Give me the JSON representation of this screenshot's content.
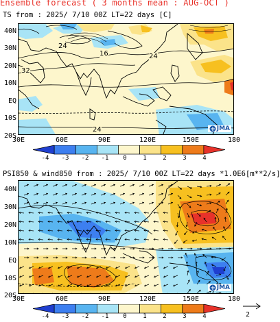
{
  "title": "Ensemble forecast ( 3 months mean : AUG-OCT )",
  "panel1": {
    "header": "TS        from : 2025/ 7/10 00Z LT=22 days   [C]",
    "lat_labels": [
      "40N",
      "30N",
      "20N",
      "10N",
      "EQ",
      "10S",
      "20S"
    ],
    "lon_labels": [
      "30E",
      "60E",
      "90E",
      "120E",
      "150E",
      "180"
    ],
    "contour_labels": [
      "24",
      "16",
      "24",
      "32",
      "24"
    ],
    "logo_text": "JMA",
    "colorbar": {
      "labels": [
        "-4",
        "-3",
        "-2",
        "-1",
        "0",
        "1",
        "2",
        "3",
        "4"
      ],
      "colors": [
        "#1f3fd0",
        "#3d7ff0",
        "#58b4f0",
        "#a8e4f6",
        "#fdf6cc",
        "#fbe38a",
        "#f7c020",
        "#ee7b1a",
        "#e8322a"
      ]
    }
  },
  "panel2": {
    "header": "PSI850 & wind850 from : 2025/ 7/10 00Z LT=22 days  *1.0E6[m**2/s]",
    "lat_labels": [
      "40N",
      "30N",
      "20N",
      "10N",
      "EQ",
      "10S",
      "20S"
    ],
    "lon_labels": [
      "30E",
      "60E",
      "90E",
      "120E",
      "150E",
      "180"
    ],
    "logo_text": "JMA",
    "colorbar": {
      "labels": [
        "-4",
        "-3",
        "-2",
        "-1",
        "0",
        "1",
        "2",
        "3",
        "4"
      ],
      "colors": [
        "#1f3fd0",
        "#3d7ff0",
        "#58b4f0",
        "#a8e4f6",
        "#fdf6cc",
        "#fbe38a",
        "#f7c020",
        "#ee7b1a",
        "#e8322a"
      ]
    },
    "vector_ref_label": "2"
  }
}
